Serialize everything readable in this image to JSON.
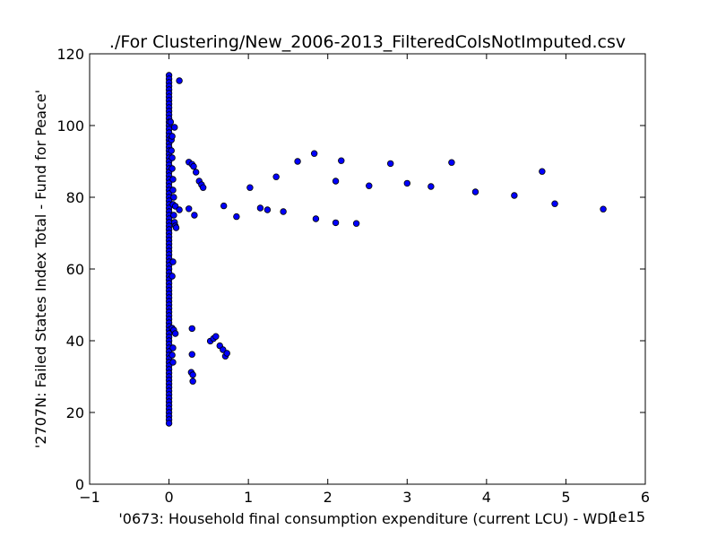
{
  "chart_data": {
    "type": "scatter",
    "title": "./For Clustering/New_2006-2013_FilteredColsNotImputed.csv",
    "xlabel": "'0673: Household final consumption expenditure  (current LCU) - WDI'",
    "ylabel": "'2707N: Failed States Index Total - Fund for Peace'",
    "x_offset_label": "1e15",
    "xlim": [
      -1,
      6
    ],
    "ylim": [
      0,
      120
    ],
    "x_ticks": [
      -1,
      0,
      1,
      2,
      3,
      4,
      5,
      6
    ],
    "y_ticks": [
      0,
      20,
      40,
      60,
      80,
      100,
      120
    ],
    "x_tick_labels": [
      "−1",
      "0",
      "1",
      "2",
      "3",
      "4",
      "5",
      "6"
    ],
    "y_tick_labels": [
      "0",
      "20",
      "40",
      "60",
      "80",
      "100",
      "120"
    ],
    "grid": false,
    "marker_color": "#0000ff",
    "marker_edge_color": "#000000",
    "points": [
      {
        "x": 0.0,
        "y": 114
      },
      {
        "x": 0.0,
        "y": 113
      },
      {
        "x": 0.0,
        "y": 112
      },
      {
        "x": 0.0,
        "y": 111
      },
      {
        "x": 0.0,
        "y": 110
      },
      {
        "x": 0.0,
        "y": 109
      },
      {
        "x": 0.0,
        "y": 108
      },
      {
        "x": 0.0,
        "y": 107
      },
      {
        "x": 0.0,
        "y": 106
      },
      {
        "x": 0.0,
        "y": 105
      },
      {
        "x": 0.0,
        "y": 104
      },
      {
        "x": 0.0,
        "y": 103
      },
      {
        "x": 0.0,
        "y": 102
      },
      {
        "x": 0.0,
        "y": 101
      },
      {
        "x": 0.0,
        "y": 100
      },
      {
        "x": 0.0,
        "y": 99
      },
      {
        "x": 0.0,
        "y": 98
      },
      {
        "x": 0.0,
        "y": 97
      },
      {
        "x": 0.0,
        "y": 96
      },
      {
        "x": 0.0,
        "y": 95
      },
      {
        "x": 0.0,
        "y": 94
      },
      {
        "x": 0.0,
        "y": 93
      },
      {
        "x": 0.0,
        "y": 92
      },
      {
        "x": 0.0,
        "y": 91
      },
      {
        "x": 0.0,
        "y": 90
      },
      {
        "x": 0.0,
        "y": 89
      },
      {
        "x": 0.0,
        "y": 88
      },
      {
        "x": 0.0,
        "y": 87
      },
      {
        "x": 0.0,
        "y": 86
      },
      {
        "x": 0.0,
        "y": 85
      },
      {
        "x": 0.0,
        "y": 84
      },
      {
        "x": 0.0,
        "y": 83
      },
      {
        "x": 0.0,
        "y": 82
      },
      {
        "x": 0.0,
        "y": 81
      },
      {
        "x": 0.0,
        "y": 80
      },
      {
        "x": 0.0,
        "y": 79
      },
      {
        "x": 0.0,
        "y": 78
      },
      {
        "x": 0.0,
        "y": 77
      },
      {
        "x": 0.0,
        "y": 76
      },
      {
        "x": 0.0,
        "y": 75
      },
      {
        "x": 0.0,
        "y": 74
      },
      {
        "x": 0.0,
        "y": 73
      },
      {
        "x": 0.0,
        "y": 72
      },
      {
        "x": 0.0,
        "y": 71
      },
      {
        "x": 0.0,
        "y": 70
      },
      {
        "x": 0.0,
        "y": 69
      },
      {
        "x": 0.0,
        "y": 68
      },
      {
        "x": 0.0,
        "y": 67
      },
      {
        "x": 0.0,
        "y": 66
      },
      {
        "x": 0.0,
        "y": 65
      },
      {
        "x": 0.0,
        "y": 64
      },
      {
        "x": 0.0,
        "y": 63
      },
      {
        "x": 0.0,
        "y": 62
      },
      {
        "x": 0.0,
        "y": 61
      },
      {
        "x": 0.0,
        "y": 60
      },
      {
        "x": 0.0,
        "y": 59
      },
      {
        "x": 0.0,
        "y": 58
      },
      {
        "x": 0.0,
        "y": 57
      },
      {
        "x": 0.0,
        "y": 56
      },
      {
        "x": 0.0,
        "y": 55
      },
      {
        "x": 0.0,
        "y": 54
      },
      {
        "x": 0.0,
        "y": 53
      },
      {
        "x": 0.0,
        "y": 52
      },
      {
        "x": 0.0,
        "y": 51
      },
      {
        "x": 0.0,
        "y": 50
      },
      {
        "x": 0.0,
        "y": 49
      },
      {
        "x": 0.0,
        "y": 48
      },
      {
        "x": 0.0,
        "y": 47
      },
      {
        "x": 0.0,
        "y": 46
      },
      {
        "x": 0.0,
        "y": 45
      },
      {
        "x": 0.0,
        "y": 44
      },
      {
        "x": 0.0,
        "y": 43
      },
      {
        "x": 0.0,
        "y": 42
      },
      {
        "x": 0.0,
        "y": 41
      },
      {
        "x": 0.0,
        "y": 40
      },
      {
        "x": 0.0,
        "y": 39
      },
      {
        "x": 0.0,
        "y": 38
      },
      {
        "x": 0.0,
        "y": 37
      },
      {
        "x": 0.0,
        "y": 36
      },
      {
        "x": 0.0,
        "y": 35
      },
      {
        "x": 0.0,
        "y": 34
      },
      {
        "x": 0.0,
        "y": 33
      },
      {
        "x": 0.0,
        "y": 32
      },
      {
        "x": 0.0,
        "y": 31
      },
      {
        "x": 0.0,
        "y": 30
      },
      {
        "x": 0.0,
        "y": 29
      },
      {
        "x": 0.0,
        "y": 28
      },
      {
        "x": 0.0,
        "y": 27
      },
      {
        "x": 0.0,
        "y": 26
      },
      {
        "x": 0.0,
        "y": 25
      },
      {
        "x": 0.0,
        "y": 24
      },
      {
        "x": 0.0,
        "y": 23
      },
      {
        "x": 0.0,
        "y": 22
      },
      {
        "x": 0.0,
        "y": 21
      },
      {
        "x": 0.0,
        "y": 20
      },
      {
        "x": 0.0,
        "y": 19
      },
      {
        "x": 0.0,
        "y": 18
      },
      {
        "x": 0.0,
        "y": 17
      },
      {
        "x": 0.02,
        "y": 101
      },
      {
        "x": 0.03,
        "y": 96
      },
      {
        "x": 0.03,
        "y": 93
      },
      {
        "x": 0.04,
        "y": 91
      },
      {
        "x": 0.04,
        "y": 88
      },
      {
        "x": 0.05,
        "y": 85
      },
      {
        "x": 0.05,
        "y": 82
      },
      {
        "x": 0.06,
        "y": 80
      },
      {
        "x": 0.05,
        "y": 78
      },
      {
        "x": 0.06,
        "y": 75
      },
      {
        "x": 0.07,
        "y": 73
      },
      {
        "x": 0.08,
        "y": 72
      },
      {
        "x": 0.09,
        "y": 71.5
      },
      {
        "x": 0.07,
        "y": 99.5
      },
      {
        "x": 0.08,
        "y": 77.5
      },
      {
        "x": 0.13,
        "y": 76.5
      },
      {
        "x": 0.04,
        "y": 97
      },
      {
        "x": 0.05,
        "y": 62
      },
      {
        "x": 0.04,
        "y": 58
      },
      {
        "x": 0.04,
        "y": 43.5
      },
      {
        "x": 0.06,
        "y": 43
      },
      {
        "x": 0.08,
        "y": 42
      },
      {
        "x": 0.05,
        "y": 38
      },
      {
        "x": 0.04,
        "y": 36
      },
      {
        "x": 0.05,
        "y": 34
      },
      {
        "x": 0.13,
        "y": 112.5
      },
      {
        "x": 0.25,
        "y": 89.8
      },
      {
        "x": 0.29,
        "y": 89.2
      },
      {
        "x": 0.31,
        "y": 88.6
      },
      {
        "x": 0.34,
        "y": 87
      },
      {
        "x": 0.38,
        "y": 84.5
      },
      {
        "x": 0.41,
        "y": 83.5
      },
      {
        "x": 0.43,
        "y": 82.7
      },
      {
        "x": 0.25,
        "y": 76.8
      },
      {
        "x": 0.32,
        "y": 75
      },
      {
        "x": 0.29,
        "y": 43.4
      },
      {
        "x": 0.29,
        "y": 36.2
      },
      {
        "x": 0.28,
        "y": 31.2
      },
      {
        "x": 0.3,
        "y": 30.5
      },
      {
        "x": 0.3,
        "y": 28.7
      },
      {
        "x": 0.52,
        "y": 39.9
      },
      {
        "x": 0.56,
        "y": 40.6
      },
      {
        "x": 0.59,
        "y": 41.2
      },
      {
        "x": 0.64,
        "y": 38.6
      },
      {
        "x": 0.68,
        "y": 37.5
      },
      {
        "x": 0.71,
        "y": 35.7
      },
      {
        "x": 0.73,
        "y": 36.5
      },
      {
        "x": 0.69,
        "y": 77.6
      },
      {
        "x": 0.85,
        "y": 74.6
      },
      {
        "x": 1.02,
        "y": 82.7
      },
      {
        "x": 1.15,
        "y": 77
      },
      {
        "x": 1.24,
        "y": 76.5
      },
      {
        "x": 1.35,
        "y": 85.7
      },
      {
        "x": 1.44,
        "y": 76
      },
      {
        "x": 1.62,
        "y": 90
      },
      {
        "x": 1.83,
        "y": 92.2
      },
      {
        "x": 1.85,
        "y": 74
      },
      {
        "x": 2.1,
        "y": 84.5
      },
      {
        "x": 2.1,
        "y": 72.9
      },
      {
        "x": 2.17,
        "y": 90.2
      },
      {
        "x": 2.36,
        "y": 72.7
      },
      {
        "x": 2.52,
        "y": 83.2
      },
      {
        "x": 2.79,
        "y": 89.4
      },
      {
        "x": 3.0,
        "y": 83.9
      },
      {
        "x": 3.3,
        "y": 83
      },
      {
        "x": 3.56,
        "y": 89.7
      },
      {
        "x": 3.86,
        "y": 81.5
      },
      {
        "x": 4.35,
        "y": 80.5
      },
      {
        "x": 4.7,
        "y": 87.2
      },
      {
        "x": 4.86,
        "y": 78.2
      },
      {
        "x": 5.47,
        "y": 76.7
      }
    ]
  }
}
